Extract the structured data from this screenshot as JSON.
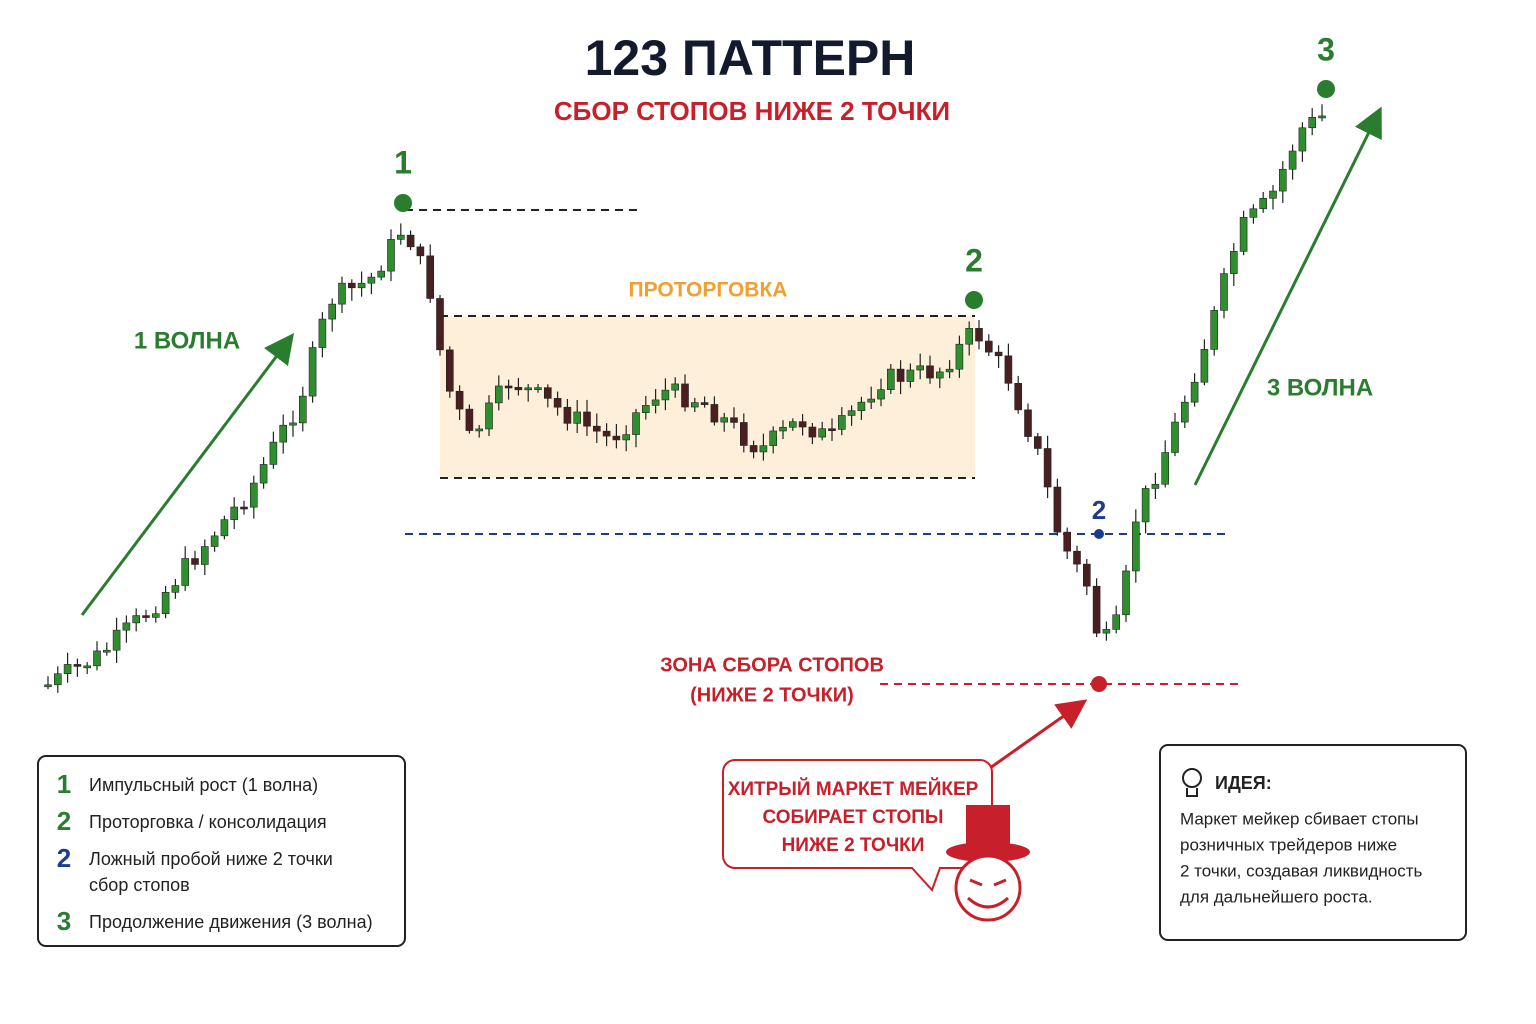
{
  "header": {
    "title": "123 ПАТТЕРН",
    "subtitle": "СБОР СТОПОВ НИЖЕ 2 ТОЧКИ"
  },
  "chart_labels": {
    "point1": "1",
    "point2": "2",
    "point2_false": "2",
    "point3": "3",
    "wave1": "1 ВОЛНА",
    "wave3": "3 ВОЛНА",
    "range": "ПРОТОРГОВКА",
    "zone": [
      "ЗОНА СБОРА СТОПОВ",
      "(НИЖЕ 2 ТОЧКИ)"
    ]
  },
  "bubble": {
    "lines": [
      "ХИТРЫЙ МАРКЕТ МЕЙКЕР",
      "СОБИРАЕТ СТОПЫ",
      "НИЖЕ 2 ТОЧКИ"
    ]
  },
  "legend": {
    "items": [
      {
        "num": "1",
        "text": [
          "Импульсный рост (1 волна)"
        ]
      },
      {
        "num": "2",
        "text": [
          "Проторговка / консолидация"
        ]
      },
      {
        "num": "2",
        "text": [
          "Ложный пробой ниже 2 точки",
          "сбор стопов"
        ]
      },
      {
        "num": "3",
        "text": [
          "Продолжение движения (3 волна)"
        ]
      }
    ]
  },
  "idea": {
    "title": "ИДЕЯ:",
    "lines": [
      "Маркет мейкер сбивает стопы",
      "розничных трейдеров ниже",
      "2 точки, создавая ликвидность",
      "для дальнейшего роста."
    ]
  }
}
